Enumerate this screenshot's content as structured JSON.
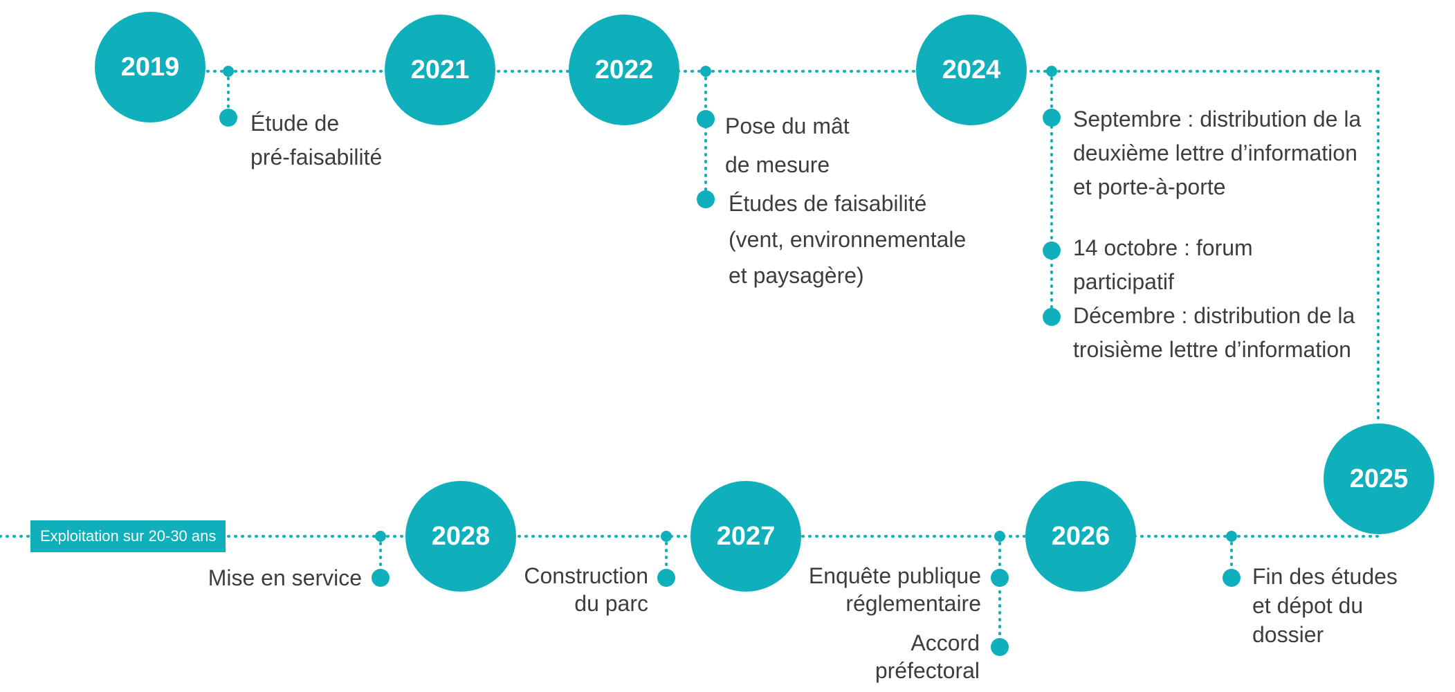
{
  "accent": "#0fb0bb",
  "text_color": "#3d3d3d",
  "years": {
    "y2019": "2019",
    "y2021": "2021",
    "y2022": "2022",
    "y2024": "2024",
    "y2025": "2025",
    "y2026": "2026",
    "y2027": "2027",
    "y2028": "2028"
  },
  "events": {
    "etude_prefaisabilite": "Étude de\npré-faisabilité",
    "pose_mat": "Pose du mât\nde mesure",
    "etudes_faisabilite": "Études de faisabilité\n(vent, environnementale\net paysagère)",
    "septembre": "Septembre : distribution de la\ndeuxième lettre d’information\net porte-à-porte",
    "octobre": "14 octobre :  forum\nparticipatif",
    "decembre": "Décembre : distribution de la\ntroisième lettre d’information",
    "fin_etudes": "Fin des études\net dépot du\ndossier",
    "enquete": "Enquête publique\nréglementaire",
    "accord": "Accord\npréfectoral",
    "construction": "Construction\ndu parc",
    "mise_en_service": "Mise en service"
  },
  "exploitation_tag": "Exploitation sur 20-30 ans"
}
